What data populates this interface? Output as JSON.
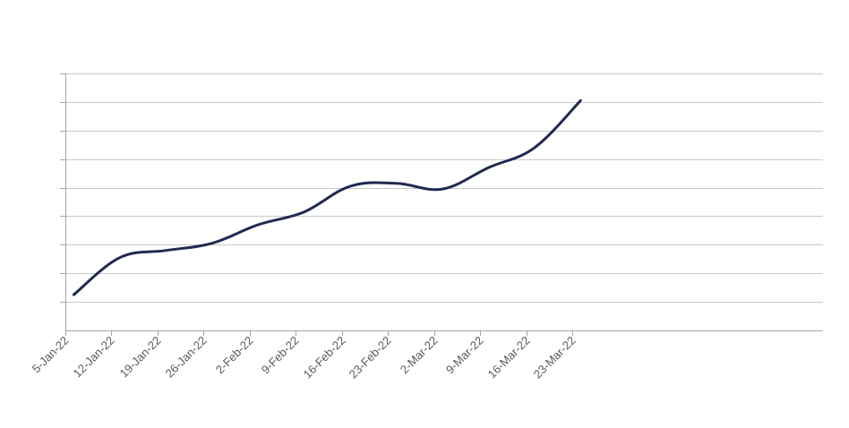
{
  "chart_data": {
    "type": "line",
    "title": "",
    "xlabel": "",
    "ylabel": "",
    "x_tick_labels": [
      "5-Jan-22",
      "12-Jan-22",
      "19-Jan-22",
      "26-Jan-22",
      "2-Feb-22",
      "9-Feb-22",
      "16-Feb-22",
      "23-Feb-22",
      "2-Mar-22",
      "9-Mar-22",
      "16-Mar-22",
      "23-Mar-22"
    ],
    "y_ticks_labeled": false,
    "ylim": [
      0,
      9
    ],
    "y_gridlines": [
      1,
      2,
      3,
      4,
      5,
      6,
      7,
      8,
      9
    ],
    "grid": true,
    "legend": "none",
    "series": [
      {
        "color": "#1f2a50",
        "points": [
          {
            "x": "2022-01-06",
            "y": 1.25
          },
          {
            "x": "2022-01-13",
            "y": 2.55
          },
          {
            "x": "2022-01-20",
            "y": 2.8
          },
          {
            "x": "2022-01-27",
            "y": 3.05
          },
          {
            "x": "2022-02-03",
            "y": 3.7
          },
          {
            "x": "2022-02-10",
            "y": 4.15
          },
          {
            "x": "2022-02-17",
            "y": 5.05
          },
          {
            "x": "2022-02-24",
            "y": 5.15
          },
          {
            "x": "2022-03-03",
            "y": 4.95
          },
          {
            "x": "2022-03-10",
            "y": 5.7
          },
          {
            "x": "2022-03-17",
            "y": 6.4
          },
          {
            "x": "2022-03-24",
            "y": 8.05
          }
        ]
      }
    ]
  }
}
